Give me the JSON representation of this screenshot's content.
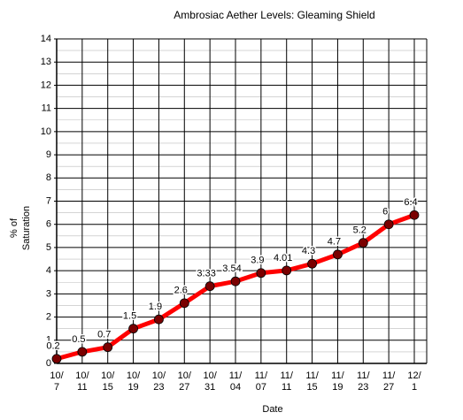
{
  "chart_data": {
    "type": "line",
    "title": "Ambrosiac Aether Levels: Gleaming Shield",
    "x_label": "Date",
    "y_label": [
      "% of",
      "Saturation"
    ],
    "categories": [
      [
        "10/",
        "7"
      ],
      [
        "10/",
        "11"
      ],
      [
        "10/",
        "15"
      ],
      [
        "10/",
        "19"
      ],
      [
        "10/",
        "23"
      ],
      [
        "10/",
        "27"
      ],
      [
        "10/",
        "31"
      ],
      [
        "11/",
        "04"
      ],
      [
        "11/",
        "07"
      ],
      [
        "11/",
        "11"
      ],
      [
        "11/",
        "15"
      ],
      [
        "11/",
        "19"
      ],
      [
        "11/",
        "23"
      ],
      [
        "11/",
        "27"
      ],
      [
        "12/",
        "1"
      ]
    ],
    "series": [
      {
        "color": "#ff0000",
        "marker_color": "#7a0000",
        "values": [
          0.2,
          0.5,
          0.7,
          1.5,
          1.9,
          2.6,
          3.33,
          3.54,
          3.9,
          4.01,
          4.3,
          4.7,
          5.2,
          6,
          6.4
        ]
      }
    ],
    "ylim": [
      0,
      14
    ],
    "yticks": [
      0,
      1,
      2,
      3,
      4,
      5,
      6,
      7,
      8,
      9,
      10,
      11,
      12,
      13,
      14
    ],
    "grid": true
  }
}
